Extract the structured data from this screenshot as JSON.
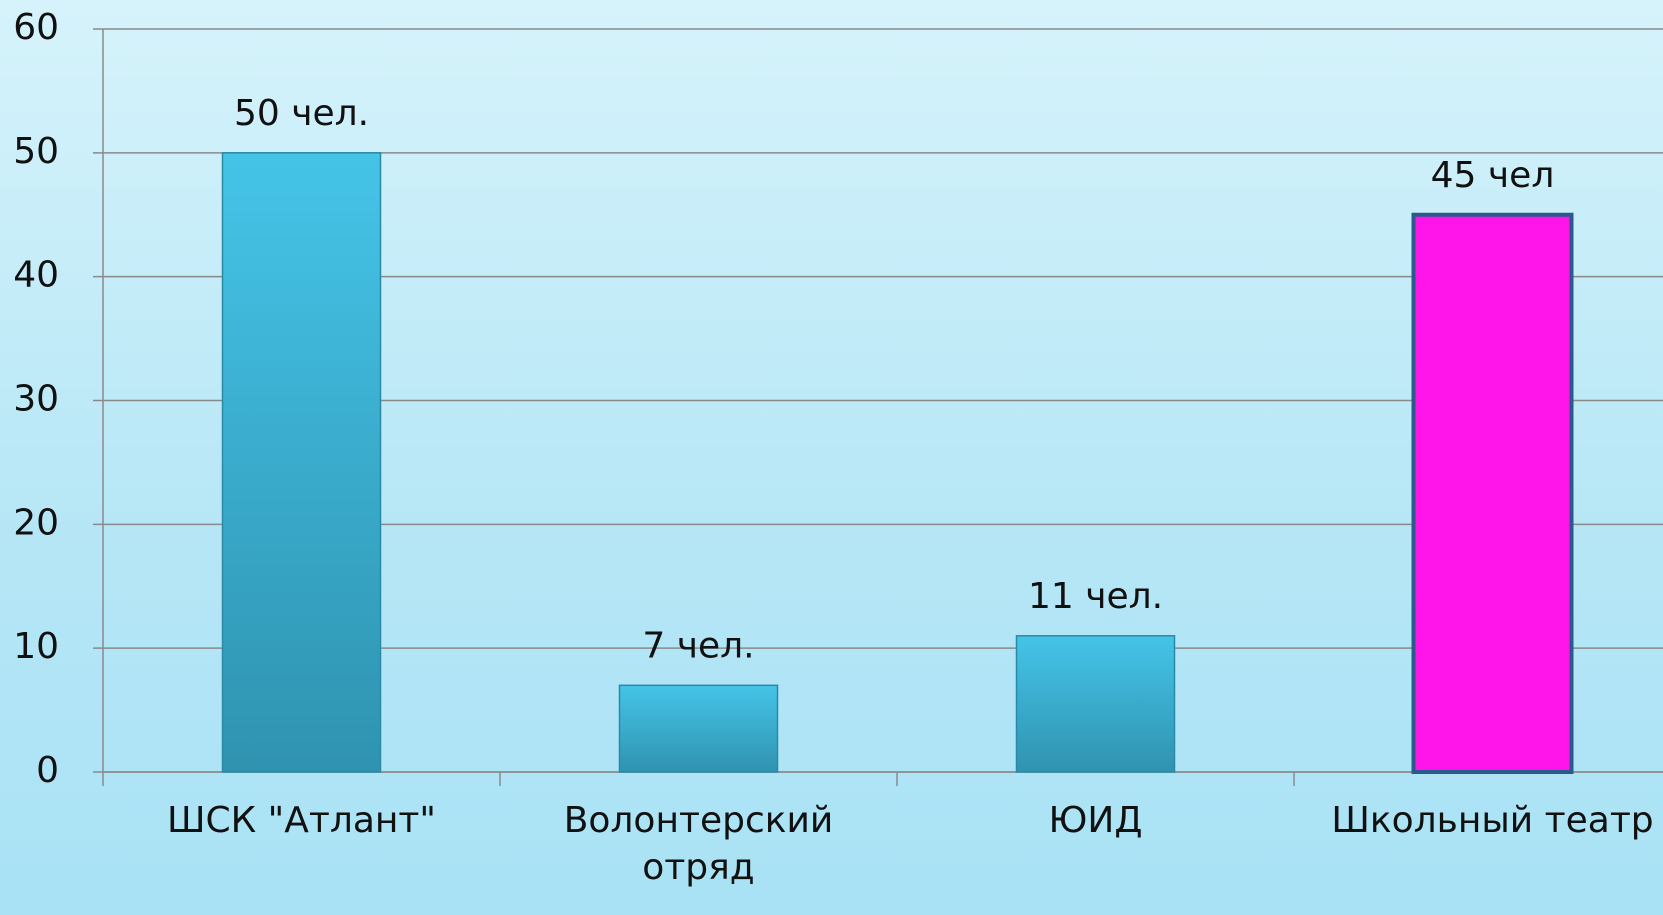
{
  "chart_data": {
    "type": "bar",
    "categories": [
      "ШСК \"Атлант\"",
      "Волонтерский отряд",
      "ЮИД",
      "Школьный театр"
    ],
    "values": [
      50,
      7,
      11,
      45
    ],
    "value_labels": [
      "50 чел.",
      "7 чел.",
      "11 чел.",
      "45 чел"
    ],
    "colors": [
      "#3ab4d8",
      "#3ab4d8",
      "#3ab4d8",
      "#ff14ea"
    ],
    "ylim": [
      0,
      60
    ],
    "yticks": [
      0,
      10,
      20,
      30,
      40,
      50,
      60
    ],
    "grid": true
  }
}
